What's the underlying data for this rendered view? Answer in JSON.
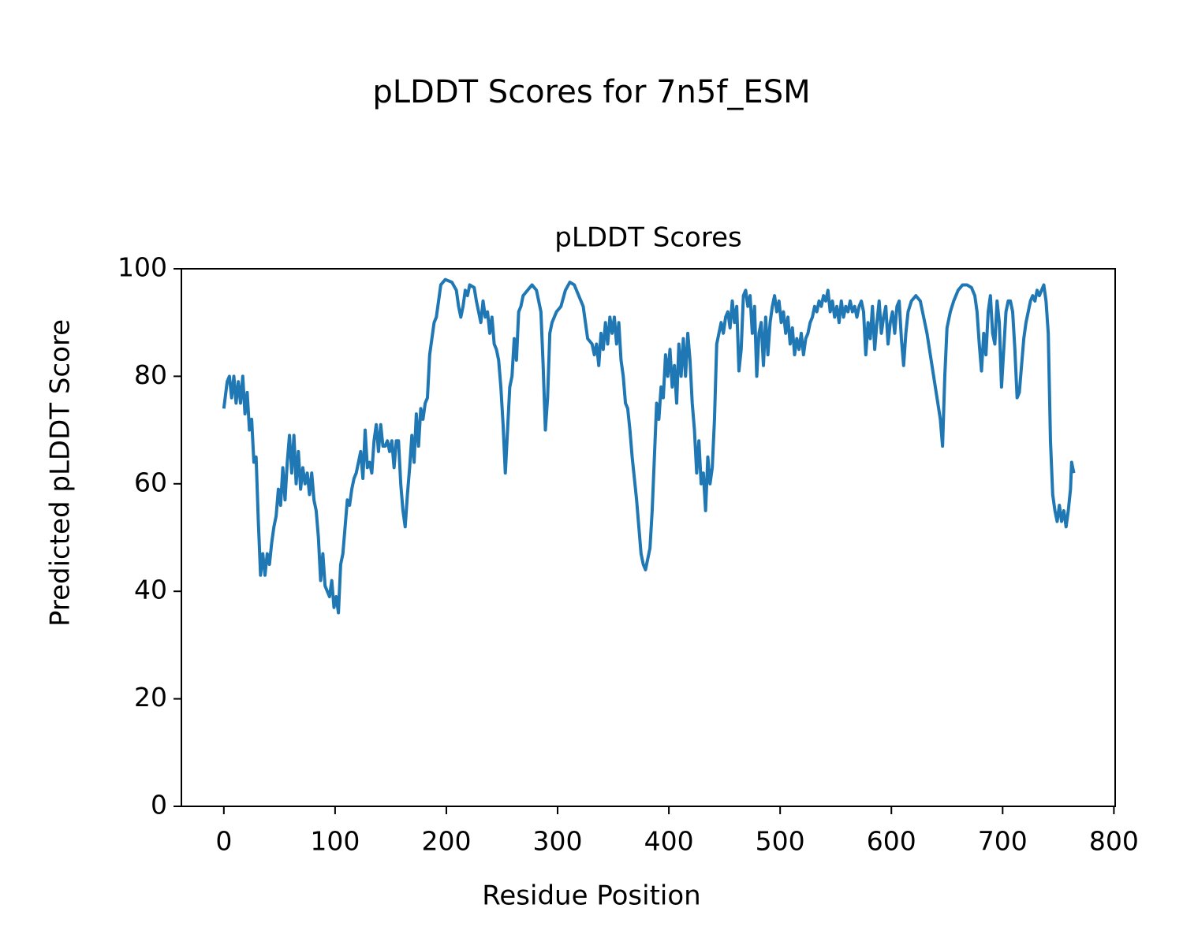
{
  "chart_data": {
    "type": "line",
    "title": "pLDDT Scores for 7n5f_ESM",
    "subtitle": "pLDDT Scores",
    "x_label": "Residue Position",
    "y_label": "Predicted pLDDT Score",
    "color": "#1f77b4",
    "xlim": [
      -38.15,
      801.15
    ],
    "xticks": [
      0,
      100,
      200,
      300,
      400,
      500,
      600,
      700,
      800
    ],
    "ylim": [
      0,
      100
    ],
    "yticks": [
      0,
      20,
      40,
      60,
      80,
      100
    ],
    "x": [
      0,
      3,
      5,
      7,
      9,
      11,
      13,
      15,
      17,
      19,
      21,
      23,
      25,
      27,
      29,
      31,
      33,
      35,
      37,
      39,
      41,
      43,
      45,
      47,
      49,
      51,
      53,
      55,
      57,
      59,
      61,
      63,
      65,
      67,
      69,
      71,
      73,
      75,
      77,
      79,
      81,
      83,
      85,
      87,
      89,
      91,
      93,
      95,
      97,
      99,
      101,
      103,
      105,
      107,
      109,
      111,
      113,
      115,
      117,
      119,
      121,
      123,
      125,
      127,
      129,
      131,
      133,
      135,
      137,
      139,
      141,
      143,
      145,
      147,
      149,
      151,
      153,
      155,
      157,
      159,
      161,
      163,
      165,
      167,
      169,
      171,
      173,
      175,
      177,
      179,
      181,
      183,
      185,
      187,
      189,
      191,
      193,
      195,
      199,
      205,
      209,
      211,
      213,
      215,
      217,
      219,
      221,
      225,
      227,
      229,
      231,
      233,
      235,
      237,
      239,
      241,
      243,
      245,
      247,
      249,
      251,
      253,
      255,
      257,
      259,
      261,
      263,
      265,
      267,
      269,
      273,
      277,
      281,
      285,
      287,
      289,
      291,
      293,
      295,
      299,
      303,
      307,
      311,
      315,
      319,
      323,
      325,
      327,
      331,
      333,
      335,
      337,
      339,
      341,
      343,
      345,
      347,
      349,
      351,
      353,
      355,
      357,
      359,
      361,
      363,
      365,
      367,
      369,
      371,
      373,
      375,
      377,
      379,
      381,
      383,
      385,
      387,
      389,
      391,
      393,
      395,
      397,
      399,
      401,
      403,
      405,
      407,
      409,
      411,
      413,
      415,
      417,
      419,
      421,
      423,
      425,
      427,
      429,
      431,
      433,
      435,
      437,
      439,
      441,
      443,
      445,
      447,
      449,
      451,
      453,
      455,
      457,
      459,
      461,
      463,
      465,
      467,
      469,
      471,
      473,
      475,
      477,
      479,
      481,
      483,
      485,
      487,
      489,
      491,
      493,
      495,
      497,
      499,
      501,
      503,
      505,
      507,
      509,
      511,
      513,
      515,
      517,
      519,
      521,
      523,
      525,
      527,
      529,
      531,
      533,
      535,
      537,
      539,
      541,
      543,
      545,
      547,
      549,
      551,
      553,
      555,
      557,
      559,
      561,
      563,
      565,
      567,
      569,
      571,
      573,
      575,
      577,
      579,
      581,
      583,
      585,
      587,
      589,
      591,
      593,
      595,
      597,
      599,
      601,
      603,
      605,
      607,
      609,
      611,
      613,
      615,
      618,
      622,
      626,
      629,
      632,
      635,
      638,
      641,
      644,
      646,
      648,
      650,
      653,
      656,
      660,
      664,
      668,
      672,
      675,
      677,
      679,
      681,
      683,
      685,
      687,
      689,
      691,
      693,
      695,
      697,
      699,
      701,
      703,
      705,
      707,
      709,
      711,
      713,
      715,
      717,
      719,
      721,
      723,
      725,
      727,
      729,
      731,
      733,
      735,
      737,
      739,
      741,
      743,
      745,
      747,
      749,
      751,
      753,
      755,
      757,
      759,
      761,
      762,
      764
    ],
    "values": [
      74,
      79,
      80,
      76,
      80,
      75,
      79,
      75,
      80,
      73,
      77,
      70,
      72,
      64,
      65,
      53,
      43,
      47,
      43,
      47,
      45,
      49,
      52,
      54,
      59,
      56,
      63,
      57,
      64,
      69,
      62,
      69,
      60,
      66,
      59,
      63,
      60,
      62,
      58,
      62,
      57,
      55,
      50,
      42,
      47,
      41,
      40,
      39,
      42,
      37,
      39,
      36,
      45,
      47,
      52,
      57,
      56,
      59,
      61,
      62,
      64,
      66,
      61,
      70,
      63,
      64,
      62,
      68,
      71,
      66,
      71,
      67,
      67,
      68,
      66,
      68,
      63,
      68,
      68,
      60,
      55,
      52,
      58,
      63,
      69,
      64,
      73,
      67,
      74,
      72,
      75,
      76,
      84,
      87,
      90,
      91,
      94,
      97,
      98,
      97.5,
      96,
      93,
      91,
      93,
      96,
      95,
      97,
      96.5,
      94,
      92,
      90,
      94,
      91,
      92,
      88,
      91,
      86,
      85,
      83,
      78,
      71,
      62,
      70,
      78,
      80,
      87,
      83,
      92,
      93,
      95,
      96,
      97,
      96,
      92,
      82,
      70,
      76,
      88,
      90,
      92,
      93,
      96,
      97.5,
      97,
      95,
      93,
      90,
      87,
      86,
      84,
      86,
      82,
      88,
      85,
      90,
      86,
      91,
      88,
      91,
      86,
      90,
      83,
      80,
      75,
      74,
      70,
      65,
      61,
      57,
      52,
      47,
      45,
      44,
      46,
      48,
      55,
      65,
      75,
      72,
      78,
      76,
      84,
      80,
      85,
      78,
      82,
      75,
      86,
      80,
      87,
      80,
      88,
      83,
      75,
      70,
      62,
      68,
      60,
      62,
      55,
      65,
      60,
      63,
      72,
      86,
      88,
      90,
      88,
      91,
      92,
      89,
      94,
      90,
      93,
      81,
      85,
      95,
      96,
      93,
      95,
      88,
      93,
      80,
      88,
      90,
      82,
      91,
      84,
      90,
      93,
      95,
      92,
      94,
      90,
      92,
      88,
      91,
      86,
      89,
      84,
      87,
      85,
      88,
      84,
      87,
      88,
      90,
      91,
      93,
      92,
      94,
      93,
      95,
      94,
      96,
      92,
      94,
      91,
      93,
      90,
      94,
      91,
      93,
      92,
      94,
      92,
      93,
      91,
      93,
      94,
      92,
      84,
      90,
      87,
      93,
      85,
      90,
      94,
      88,
      91,
      93,
      86,
      90,
      92,
      88,
      93,
      94,
      87,
      82,
      88,
      92,
      94,
      95,
      94,
      91,
      88,
      84,
      80,
      76,
      72,
      67,
      80,
      89,
      92,
      94,
      96,
      97,
      97,
      96.5,
      95,
      92,
      86,
      81,
      88,
      84,
      92,
      95,
      88,
      86,
      94,
      90,
      78,
      85,
      92,
      94,
      94,
      92,
      85,
      76,
      77,
      82,
      87,
      90,
      92,
      94,
      95,
      94,
      96,
      95,
      96,
      97,
      94,
      88,
      68,
      58,
      55,
      53,
      56,
      53,
      55,
      52,
      55,
      59,
      64,
      62
    ]
  }
}
